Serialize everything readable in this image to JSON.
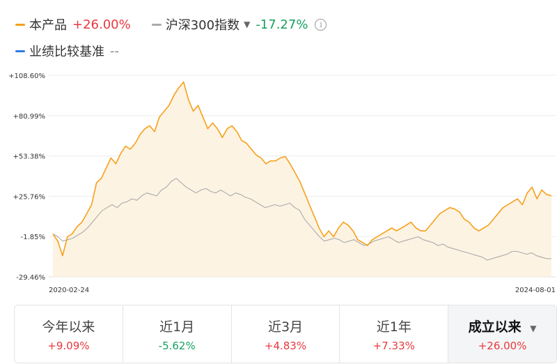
{
  "legend": [
    {
      "name": "本产品",
      "value": "+26.00%",
      "color": "#f5a01a",
      "value_color": "red"
    },
    {
      "name": "沪深300指数",
      "value": "-17.27%",
      "color": "#aaaaaa",
      "value_color": "green",
      "dropdown": "▼",
      "info": "i"
    },
    {
      "name": "业绩比较基准",
      "value": "--",
      "color": "#2f7de1",
      "value_color": "grey"
    }
  ],
  "chart_data": {
    "type": "line",
    "y_ticks": [
      "+108.60%",
      "+80.99%",
      "+53.38%",
      "+25.76%",
      "-1.85%",
      "-29.46%"
    ],
    "y_tick_values": [
      108.6,
      80.99,
      53.38,
      25.76,
      -1.85,
      -29.46
    ],
    "ylim": [
      -29.46,
      108.6
    ],
    "x_labels": [
      "2020-02-24",
      "2024-08-01"
    ],
    "grid": true,
    "series": [
      {
        "name": "本产品",
        "color": "#f5a01a",
        "fill": "#fdf3e3",
        "values": [
          0,
          -5,
          -15,
          -2,
          0,
          5,
          8,
          14,
          20,
          35,
          38,
          45,
          52,
          48,
          55,
          60,
          58,
          62,
          68,
          72,
          74,
          70,
          80,
          84,
          88,
          95,
          100,
          104,
          92,
          84,
          88,
          80,
          72,
          76,
          72,
          66,
          72,
          74,
          70,
          64,
          62,
          58,
          54,
          52,
          48,
          50,
          50,
          52,
          53,
          48,
          42,
          36,
          28,
          20,
          12,
          4,
          -2,
          2,
          -2,
          4,
          8,
          6,
          2,
          -4,
          -6,
          -8,
          -4,
          -2,
          0,
          2,
          4,
          2,
          4,
          6,
          8,
          4,
          2,
          2,
          6,
          10,
          14,
          16,
          18,
          17,
          15,
          10,
          8,
          4,
          2,
          4,
          6,
          10,
          14,
          18,
          20,
          22,
          24,
          20,
          28,
          32,
          24,
          30,
          27,
          26
        ]
      },
      {
        "name": "沪深300指数",
        "color": "#aaaaaa",
        "fill": "none",
        "values": [
          0,
          -2,
          -5,
          -4,
          -3,
          -1,
          1,
          4,
          8,
          12,
          16,
          18,
          20,
          18,
          21,
          22,
          24,
          23,
          26,
          28,
          27,
          26,
          30,
          32,
          36,
          38,
          35,
          32,
          30,
          28,
          30,
          31,
          29,
          28,
          30,
          28,
          26,
          28,
          27,
          25,
          24,
          22,
          20,
          18,
          19,
          20,
          19,
          20,
          21,
          18,
          16,
          10,
          6,
          2,
          -2,
          -5,
          -4,
          -3,
          -4,
          -6,
          -5,
          -4,
          -6,
          -8,
          -7,
          -5,
          -4,
          -3,
          -2,
          -4,
          -6,
          -5,
          -4,
          -3,
          -2,
          -4,
          -5,
          -6,
          -8,
          -7,
          -9,
          -10,
          -11,
          -12,
          -13,
          -14,
          -15,
          -16,
          -18,
          -17,
          -16,
          -15,
          -14,
          -12,
          -12,
          -13,
          -14,
          -13,
          -15,
          -16,
          -17,
          -17
        ]
      }
    ]
  },
  "tabs": [
    {
      "label": "今年以来",
      "value": "+9.09%",
      "value_color": "red"
    },
    {
      "label": "近1月",
      "value": "-5.62%",
      "value_color": "green"
    },
    {
      "label": "近3月",
      "value": "+4.83%",
      "value_color": "red"
    },
    {
      "label": "近1年",
      "value": "+7.33%",
      "value_color": "red"
    },
    {
      "label": "成立以来",
      "value": "+26.00%",
      "value_color": "red",
      "active": true,
      "dropdown": "▼"
    }
  ]
}
